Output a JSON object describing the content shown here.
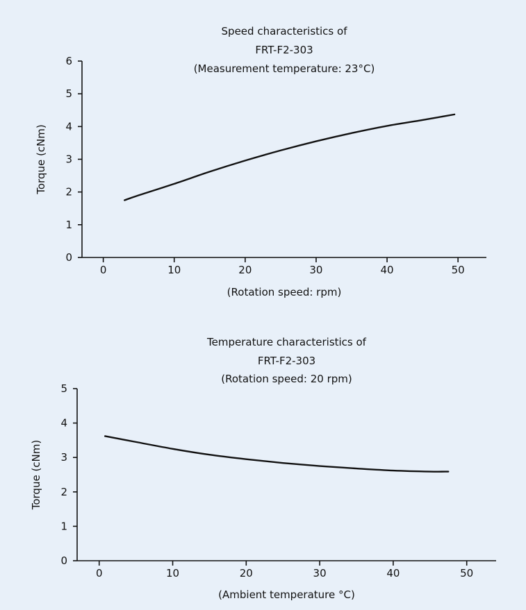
{
  "background_color": "#e8f0f9",
  "chart_data": [
    {
      "type": "line",
      "title": [
        "Speed characteristics of",
        "FRT-F2-303",
        "(Measurement temperature: 23°C)"
      ],
      "xlabel": "(Rotation speed: rpm)",
      "ylabel": "Torque (cNm)",
      "xlim": [
        -3,
        54
      ],
      "ylim": [
        0,
        6
      ],
      "xticks": [
        0,
        10,
        20,
        30,
        40,
        50
      ],
      "yticks": [
        0,
        1,
        2,
        3,
        4,
        5,
        6
      ],
      "grid": false,
      "series": [
        {
          "color": "#111111",
          "x": [
            3,
            5,
            10,
            15,
            20,
            25,
            30,
            35,
            40,
            45,
            49.5
          ],
          "y": [
            1.75,
            1.9,
            2.25,
            2.62,
            2.96,
            3.27,
            3.55,
            3.8,
            4.02,
            4.2,
            4.37
          ]
        }
      ]
    },
    {
      "type": "line",
      "title": [
        "Temperature characteristics of",
        "FRT-F2-303",
        "(Rotation speed: 20 rpm)"
      ],
      "xlabel": "(Ambient temperature °C)",
      "ylabel": "Torque (cNm)",
      "xlim": [
        -3,
        54
      ],
      "ylim": [
        0,
        5
      ],
      "xticks": [
        0,
        10,
        20,
        30,
        40,
        50
      ],
      "yticks": [
        0,
        1,
        2,
        3,
        4,
        5
      ],
      "grid": false,
      "series": [
        {
          "color": "#111111",
          "x": [
            0.8,
            5,
            10,
            15,
            20,
            25,
            30,
            35,
            40,
            45,
            47.5
          ],
          "y": [
            3.62,
            3.45,
            3.25,
            3.08,
            2.95,
            2.84,
            2.75,
            2.68,
            2.62,
            2.59,
            2.59
          ]
        }
      ]
    }
  ]
}
